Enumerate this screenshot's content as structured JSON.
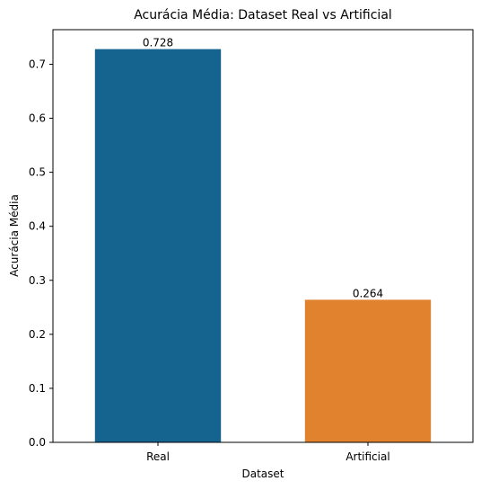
{
  "chart_data": {
    "type": "bar",
    "title": "Acurácia Média: Dataset Real vs Artificial",
    "xlabel": "Dataset",
    "ylabel": "Acurácia Média",
    "categories": [
      "Real",
      "Artificial"
    ],
    "values": [
      0.728,
      0.264
    ],
    "data_labels": [
      "0.728",
      "0.264"
    ],
    "colors": [
      "#15638f",
      "#e1822f"
    ],
    "ylim": [
      0,
      0.764
    ],
    "yticks": [
      0.0,
      0.1,
      0.2,
      0.3,
      0.4,
      0.5,
      0.6,
      0.7
    ],
    "ytick_labels": [
      "0.0",
      "0.1",
      "0.2",
      "0.3",
      "0.4",
      "0.5",
      "0.6",
      "0.7"
    ],
    "grid": false,
    "legend": "none"
  }
}
